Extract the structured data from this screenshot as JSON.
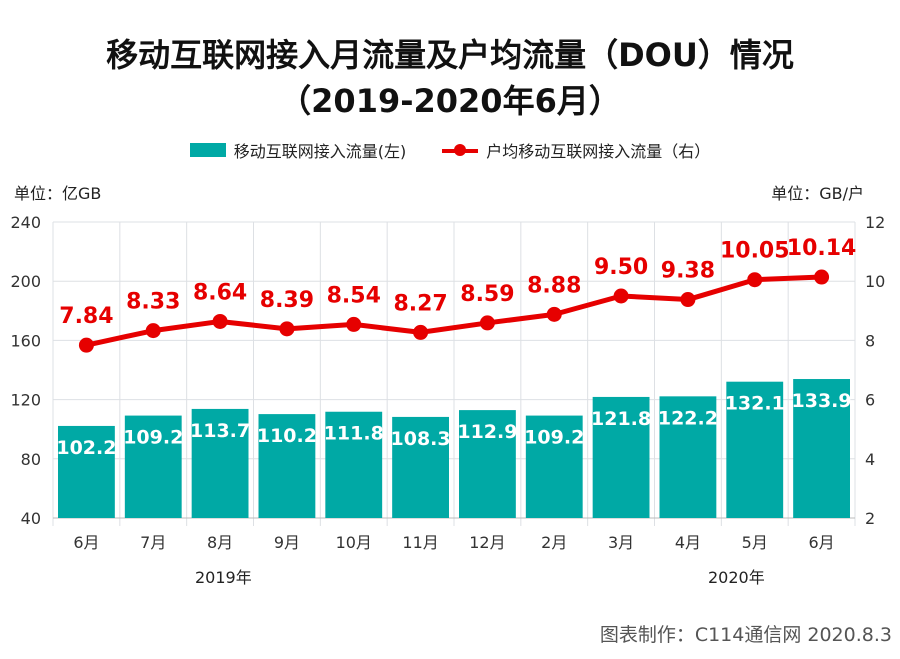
{
  "title_line1": "移动互联网接入月流量及户均流量（DOU）情况",
  "title_line2": "（2019-2020年6月）",
  "footer": "图表制作：C114通信网 2020.8.3",
  "chart_data": {
    "type": "bar+line",
    "categories": [
      "6月",
      "7月",
      "8月",
      "9月",
      "10月",
      "11月",
      "12月",
      "2月",
      "3月",
      "4月",
      "5月",
      "6月"
    ],
    "year_labels": [
      "2019年",
      "2020年"
    ],
    "series": [
      {
        "name": "移动互联网接入流量(左)",
        "type": "bar",
        "axis": "left",
        "color": "#00a9a5",
        "values": [
          102.2,
          109.2,
          113.7,
          110.2,
          111.8,
          108.3,
          112.9,
          109.2,
          121.8,
          122.2,
          132.1,
          133.9
        ]
      },
      {
        "name": "户均移动互联网接入流量（右）",
        "type": "line",
        "axis": "right",
        "color": "#e60000",
        "values": [
          7.84,
          8.33,
          8.64,
          8.39,
          8.54,
          8.27,
          8.59,
          8.88,
          9.5,
          9.38,
          10.05,
          10.14
        ]
      }
    ],
    "ylabel_left": "单位：亿GB",
    "ylabel_right": "单位：GB/户",
    "ylim_left": [
      40,
      240
    ],
    "yticks_left": [
      40,
      80,
      120,
      160,
      200,
      240
    ],
    "ylim_right": [
      2,
      12
    ],
    "yticks_right": [
      2,
      4,
      6,
      8,
      10,
      12
    ],
    "grid": true,
    "legend": "top"
  }
}
